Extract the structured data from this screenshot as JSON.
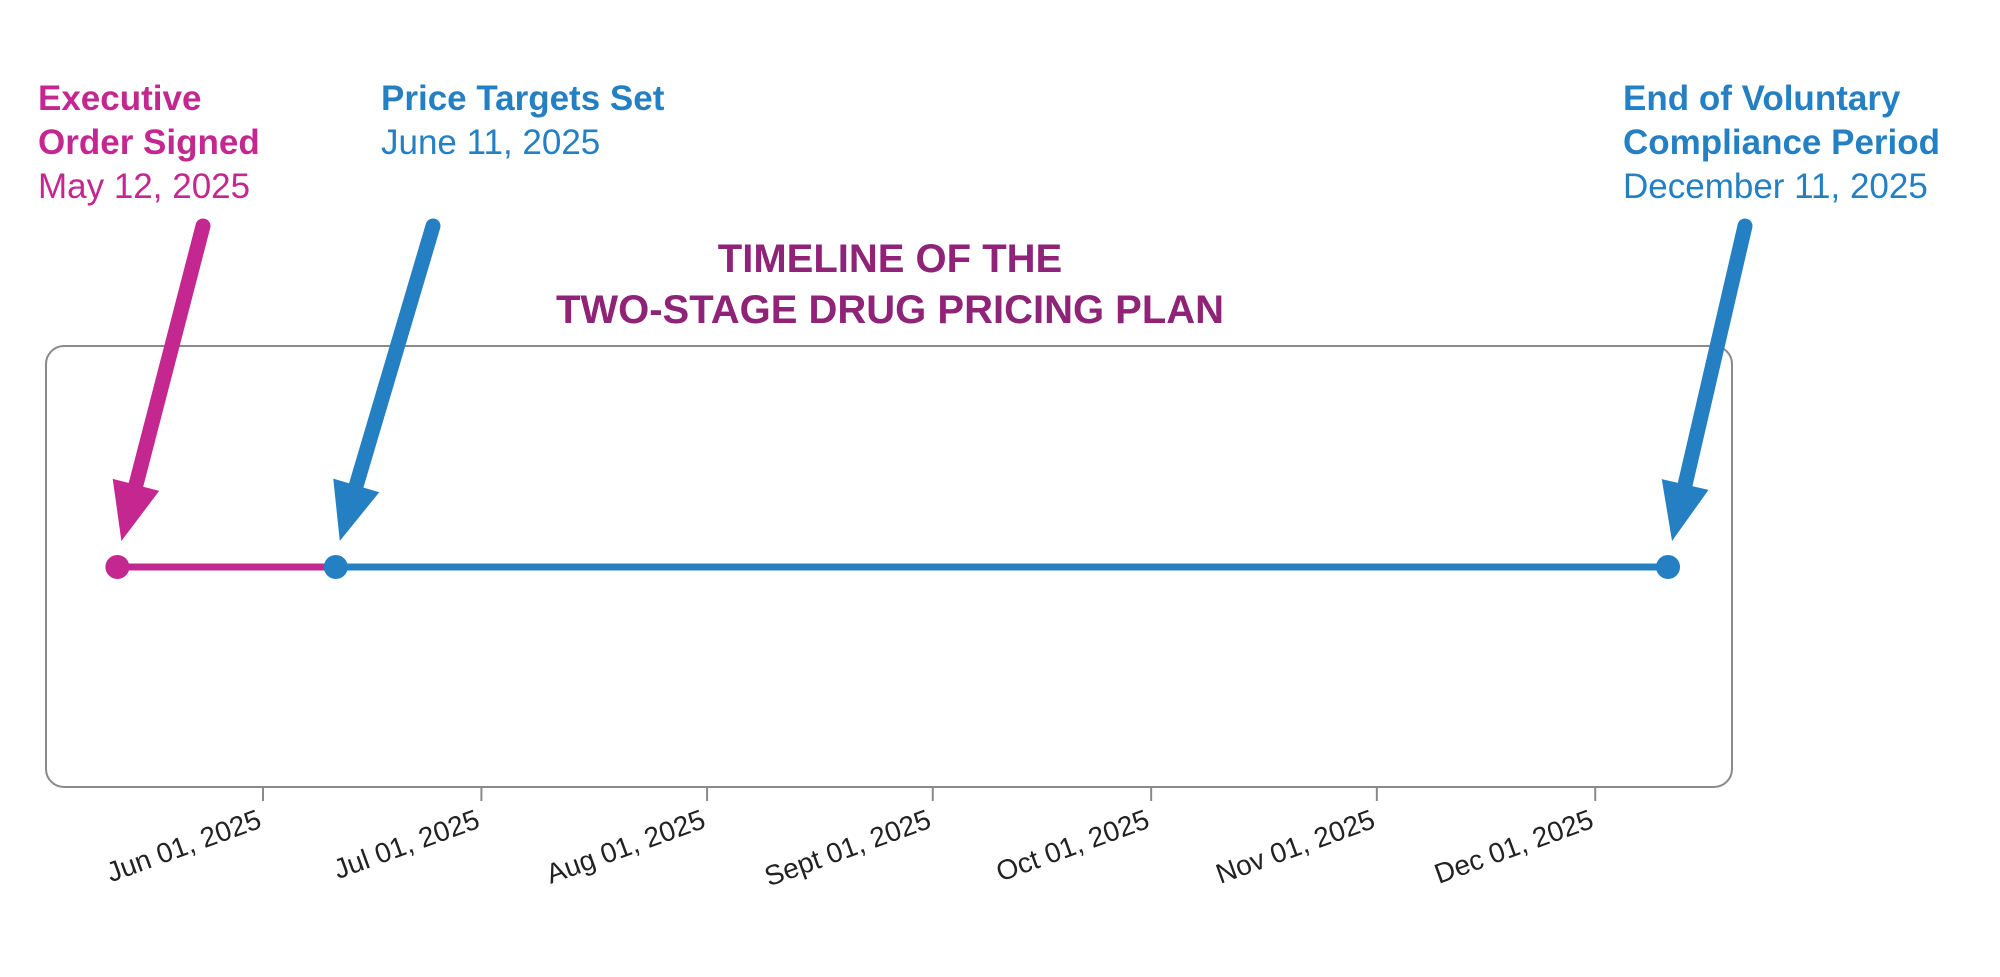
{
  "title": {
    "line1": "TIMELINE OF THE",
    "line2": "TWO-STAGE DRUG PRICING PLAN"
  },
  "colors": {
    "magenta": "#c4278f",
    "blue": "#2480c3",
    "title": "#8e2378",
    "frame": "#8a8a8a",
    "axis_text": "#222222"
  },
  "events": [
    {
      "id": "exec-order",
      "title_lines": [
        "Executive",
        "Order Signed"
      ],
      "date_label": "May 12, 2025",
      "date": "2025-05-12",
      "color": "#c4278f"
    },
    {
      "id": "price-targets",
      "title_lines": [
        "Price Targets Set"
      ],
      "date_label": "June 11, 2025",
      "date": "2025-06-11",
      "color": "#2480c3"
    },
    {
      "id": "end-compliance",
      "title_lines": [
        "End of Voluntary",
        "Compliance Period"
      ],
      "date_label": "December 11, 2025",
      "date": "2025-12-11",
      "color": "#2480c3"
    }
  ],
  "segments": [
    {
      "from": "2025-05-12",
      "to": "2025-06-11",
      "color": "#c4278f"
    },
    {
      "from": "2025-06-11",
      "to": "2025-12-11",
      "color": "#2480c3"
    }
  ],
  "axis": {
    "ticks": [
      {
        "date": "2025-06-01",
        "label": "Jun 01, 2025"
      },
      {
        "date": "2025-07-01",
        "label": "Jul 01, 2025"
      },
      {
        "date": "2025-08-01",
        "label": "Aug 01, 2025"
      },
      {
        "date": "2025-09-01",
        "label": "Sept 01, 2025"
      },
      {
        "date": "2025-10-01",
        "label": "Oct 01, 2025"
      },
      {
        "date": "2025-11-01",
        "label": "Nov 01, 2025"
      },
      {
        "date": "2025-12-01",
        "label": "Dec 01, 2025"
      }
    ]
  }
}
